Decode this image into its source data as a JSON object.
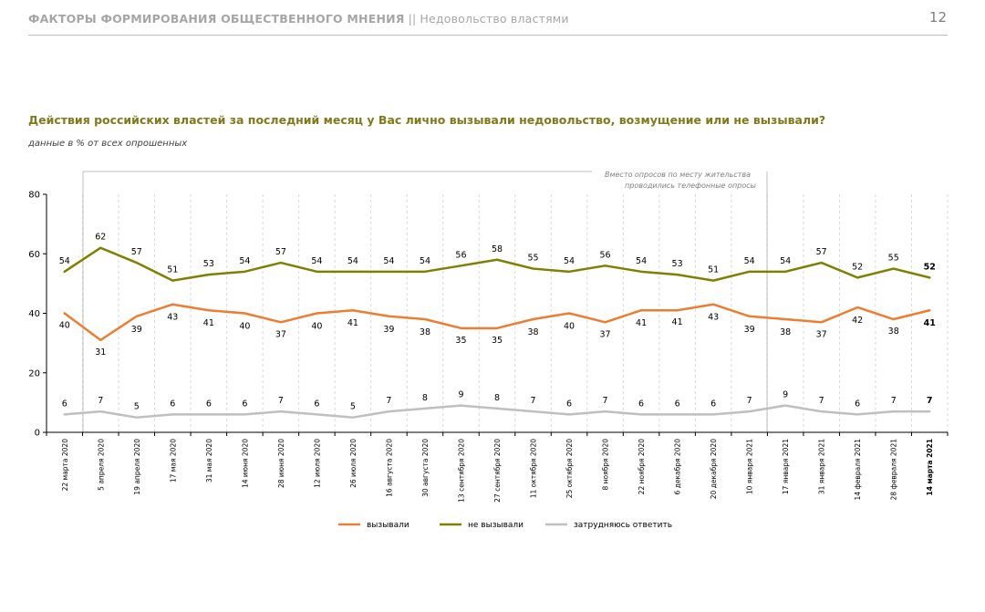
{
  "header": {
    "section": "ФАКТОРЫ ФОРМИРОВАНИЯ ОБЩЕСТВЕННОГО МНЕНИЯ",
    "separator": "||",
    "topic": "Недовольство властями",
    "page_number": "12"
  },
  "question": "Действия российских властей за последний месяц у Вас лично вызывали недовольство, возмущение или не вызывали?",
  "subtitle": "данные в % от всех опрошенных",
  "note_line1": "Вместо опросов по месту жительства",
  "note_line2": "проводились телефонные опросы",
  "chart_data": {
    "type": "line",
    "title": "Действия российских властей за последний месяц у Вас лично вызывали недовольство, возмущение или не вызывали?",
    "ylabel": "",
    "xlabel": "",
    "ylim": [
      0,
      80
    ],
    "yticks": [
      0,
      20,
      40,
      60,
      80
    ],
    "grid": "vertical dashed",
    "legend_position": "bottom",
    "categories": [
      "22 марта 2020",
      "5 апреля 2020",
      "19 апреля 2020",
      "17 мая 2020",
      "31 мая 2020",
      "14 июня 2020",
      "28 июня 2020",
      "12 июля 2020",
      "26 июля 2020",
      "16 августа 2020",
      "30 августа 2020",
      "13 сентября 2020",
      "27 сентября 2020",
      "11 октября 2020",
      "25 октября 2020",
      "8 ноября 2020",
      "22 ноября 2020",
      "6 декабря 2020",
      "20 декабря 2020",
      "10 января 2021",
      "17 января 2021",
      "31 января 2021",
      "14 февраля 2021",
      "28 февраля 2021",
      "14 марта 2021"
    ],
    "series": [
      {
        "name": "вызывали",
        "color": "#ed7d31",
        "values": [
          40,
          31,
          39,
          43,
          41,
          40,
          37,
          40,
          41,
          39,
          38,
          35,
          35,
          38,
          40,
          37,
          41,
          41,
          43,
          39,
          38,
          37,
          42,
          38,
          41
        ]
      },
      {
        "name": "не вызывали",
        "color": "#808000",
        "values": [
          54,
          62,
          57,
          51,
          53,
          54,
          57,
          54,
          54,
          54,
          54,
          56,
          58,
          55,
          54,
          56,
          54,
          53,
          51,
          54,
          54,
          57,
          52,
          55,
          52
        ]
      },
      {
        "name": "затрудняюсь ответить",
        "color": "#bfbfbf",
        "values": [
          6,
          7,
          5,
          6,
          6,
          6,
          7,
          6,
          5,
          7,
          8,
          9,
          8,
          7,
          6,
          7,
          6,
          6,
          6,
          7,
          9,
          7,
          6,
          7,
          7
        ]
      }
    ]
  }
}
